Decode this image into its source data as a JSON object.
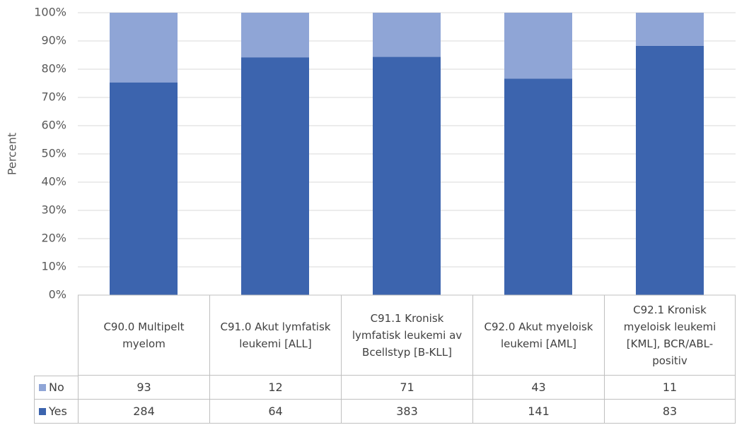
{
  "chart_data": {
    "type": "bar",
    "stacking": "percent",
    "y_label": "Percent",
    "categories": [
      "C90.0 Multipelt myelom",
      "C91.0 Akut lymfatisk leukemi [ALL]",
      "C91.1 Kronisk lymfatisk leukemi av Bcellstyp [B-KLL]",
      "C92.0 Akut myeloisk leukemi [AML]",
      "C92.1 Kronisk myeloisk leukemi [KML], BCR/ABL-positiv"
    ],
    "series": [
      {
        "name": "Yes",
        "color": "#3c64ae",
        "values": [
          284,
          64,
          383,
          141,
          83
        ]
      },
      {
        "name": "No",
        "color": "#8fa5d6",
        "values": [
          93,
          12,
          71,
          43,
          11
        ]
      }
    ],
    "ylim": [
      0,
      100
    ],
    "yticks": [
      {
        "value": 0,
        "label": "0%"
      },
      {
        "value": 10,
        "label": "10%"
      },
      {
        "value": 20,
        "label": "20%"
      },
      {
        "value": 30,
        "label": "30%"
      },
      {
        "value": 40,
        "label": "40%"
      },
      {
        "value": 50,
        "label": "50%"
      },
      {
        "value": 60,
        "label": "60%"
      },
      {
        "value": 70,
        "label": "70%"
      },
      {
        "value": 80,
        "label": "80%"
      },
      {
        "value": 90,
        "label": "90%"
      },
      {
        "value": 100,
        "label": "100%"
      }
    ],
    "grid": true,
    "data_table": true
  }
}
